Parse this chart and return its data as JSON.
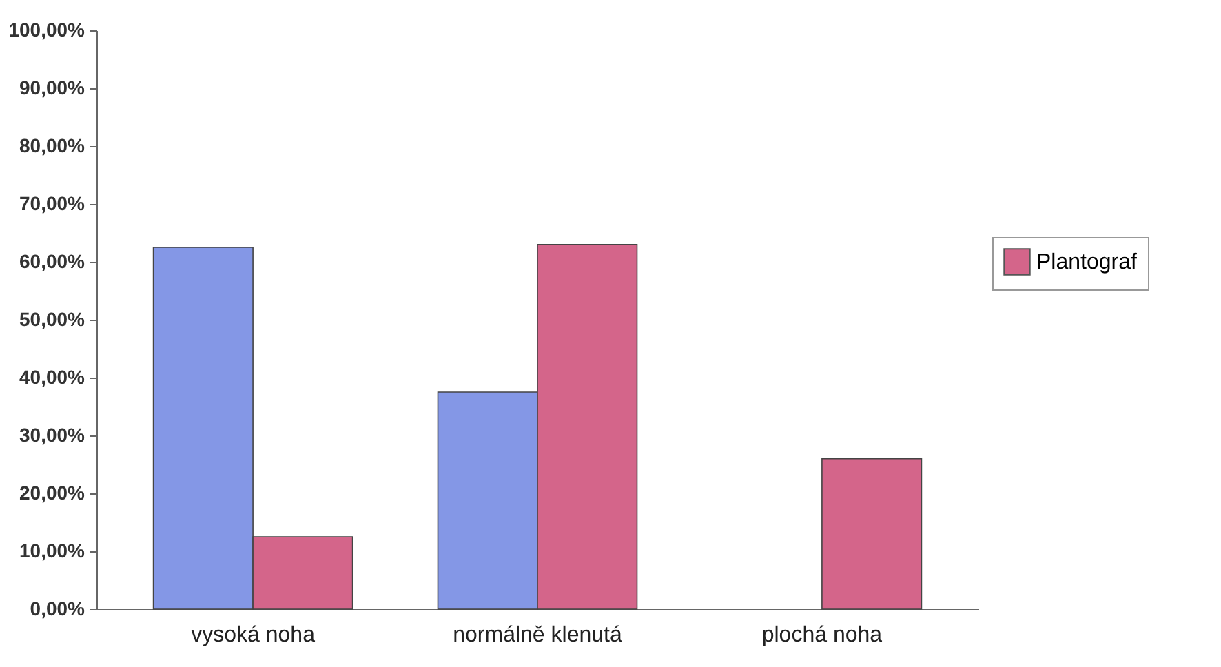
{
  "chart_data": {
    "type": "bar",
    "categories": [
      "vysoká noha",
      "normálně klenutá",
      "plochá noha"
    ],
    "series": [
      {
        "color": "#8497e6",
        "values": [
          62.5,
          37.5,
          null
        ]
      },
      {
        "name": "Plantograf",
        "color": "#d4658a",
        "values": [
          12.5,
          63,
          26
        ]
      }
    ],
    "ylim": [
      0,
      100
    ],
    "yticks": [
      {
        "value": 0,
        "label": "0,00%"
      },
      {
        "value": 10,
        "label": "10,00%"
      },
      {
        "value": 20,
        "label": "20,00%"
      },
      {
        "value": 30,
        "label": "30,00%"
      },
      {
        "value": 40,
        "label": "40,00%"
      },
      {
        "value": 50,
        "label": "50,00%"
      },
      {
        "value": 60,
        "label": "60,00%"
      },
      {
        "value": 70,
        "label": "70,00%"
      },
      {
        "value": 80,
        "label": "80,00%"
      },
      {
        "value": 90,
        "label": "90,00%"
      },
      {
        "value": 100,
        "label": "100,00%"
      }
    ],
    "grid": false,
    "legend": "right"
  }
}
